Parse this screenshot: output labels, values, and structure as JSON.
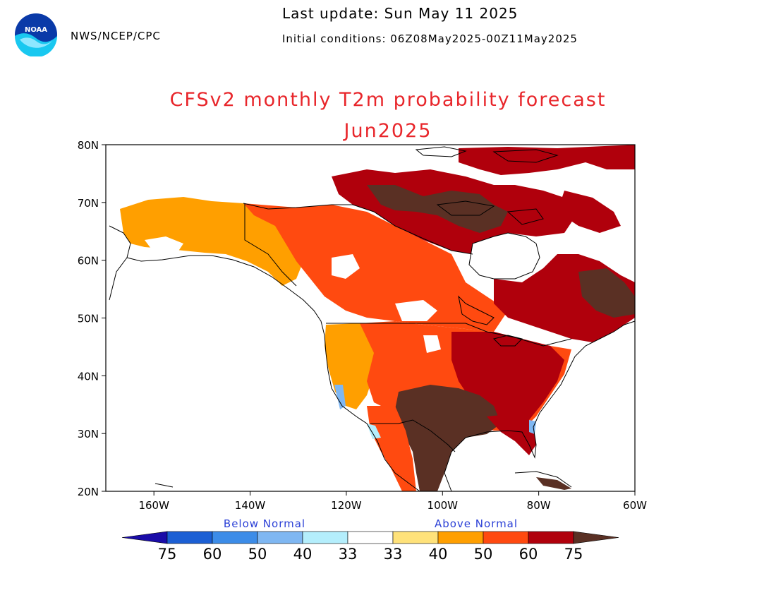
{
  "header": {
    "agency": "NWS/NCEP/CPC",
    "last_update": "Last update: Sun May 11 2025",
    "initial_conditions": "Initial conditions: 06Z08May2025-00Z11May2025",
    "logo_text": "NOAA"
  },
  "title": {
    "line1": "CFSv2 monthly T2m probability forecast",
    "line2": "Jun2025"
  },
  "map": {
    "region": "North America",
    "lat_ticks": [
      "80N",
      "70N",
      "60N",
      "50N",
      "40N",
      "30N",
      "20N"
    ],
    "lon_ticks": [
      "160W",
      "140W",
      "120W",
      "100W",
      "80W",
      "60W"
    ],
    "lat_range": [
      20,
      80
    ],
    "lon_range": [
      -170,
      -60
    ]
  },
  "legend": {
    "below_label": "Below Normal",
    "above_label": "Above Normal",
    "below_labels": [
      "75",
      "60",
      "50",
      "40",
      "33"
    ],
    "above_labels": [
      "33",
      "40",
      "50",
      "60",
      "75"
    ],
    "below_colors": [
      "#1a0ca8",
      "#1b5fd4",
      "#3c8ce8",
      "#7fb7f2",
      "#b4eefc"
    ],
    "neutral_color": "#ffffff",
    "above_colors": [
      "#ffe27a",
      "#ff9f00",
      "#ff4a10",
      "#b0000c",
      "#5a3024"
    ]
  }
}
